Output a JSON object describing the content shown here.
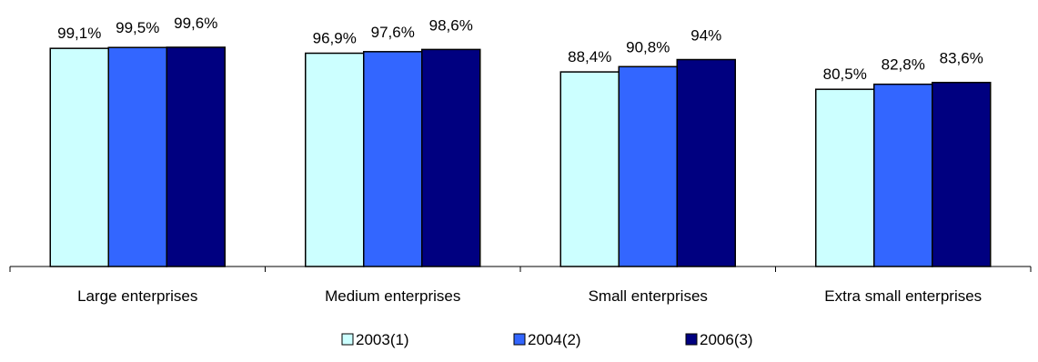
{
  "chart_data": {
    "type": "bar",
    "categories": [
      "Large enterprises",
      "Medium enterprises",
      "Small enterprises",
      "Extra small enterprises"
    ],
    "series": [
      {
        "name": "2003(1)",
        "color": "#ccffff",
        "values": [
          99.1,
          96.9,
          88.4,
          80.5
        ],
        "labels": [
          "99,1%",
          "96,9%",
          "88,4%",
          "80,5%"
        ]
      },
      {
        "name": "2004(2)",
        "color": "#3366ff",
        "values": [
          99.5,
          97.6,
          90.8,
          82.8
        ],
        "labels": [
          "99,5%",
          "97,6%",
          "90,8%",
          "82,8%"
        ]
      },
      {
        "name": "2006(3)",
        "color": "#000080",
        "values": [
          99.6,
          98.6,
          94,
          83.6
        ],
        "labels": [
          "99,6%",
          "98,6%",
          "94%",
          "83,6%"
        ]
      }
    ],
    "ylim": [
      0,
      100
    ],
    "grid": false,
    "legend_position": "bottom",
    "title": "",
    "xlabel": "",
    "ylabel": ""
  }
}
